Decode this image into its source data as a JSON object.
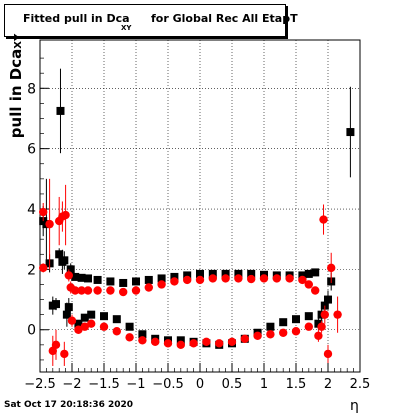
{
  "title": {
    "main": "Fitted pull in Dca",
    "sub": "XY",
    "rest": "for Global Rec All EtapT"
  },
  "ylabel": {
    "main": "pull in Dca",
    "sub": "XY"
  },
  "xlabel": "η",
  "timestamp": "Sat Oct 17 20:18:36 2020",
  "chart_data": {
    "type": "scatter",
    "xlim": [
      -2.5,
      2.5
    ],
    "ylim": [
      -1.4,
      9.6
    ],
    "grid": true,
    "xticks": [
      -2.5,
      -2,
      -1.5,
      -1,
      -0.5,
      0,
      0.5,
      1,
      1.5,
      2,
      2.5
    ],
    "xtick_labels": [
      "−2.5",
      "−2",
      "−1.5",
      "−1",
      "−0.5",
      "0",
      "0.5",
      "1",
      "1.5",
      "2",
      "2.5"
    ],
    "yticks": [
      0,
      2,
      4,
      6,
      8
    ],
    "ytick_labels": [
      "0",
      "2",
      "4",
      "6",
      "8"
    ],
    "series": [
      {
        "color": "#000000",
        "marker": "square",
        "points": [
          [
            -2.45,
            3.6,
            0.5
          ],
          [
            -2.4,
            3.5,
            1.5
          ],
          [
            -2.35,
            2.2,
            0.3
          ],
          [
            -2.3,
            0.8,
            0.3
          ],
          [
            -2.25,
            0.85,
            0.2
          ],
          [
            -2.2,
            2.5,
            0.2
          ],
          [
            -2.18,
            7.25,
            1.4
          ],
          [
            -2.15,
            2.25,
            0.4
          ],
          [
            -2.12,
            2.3,
            0.3
          ],
          [
            -2.08,
            0.5,
            0.4
          ],
          [
            -2.05,
            0.75,
            0.3
          ],
          [
            -2.02,
            2.0,
            0.2
          ],
          [
            -1.95,
            1.75,
            0.1
          ],
          [
            -1.85,
            1.72,
            0.08
          ],
          [
            -1.75,
            1.7,
            0.05
          ],
          [
            -1.6,
            1.65,
            0.05
          ],
          [
            -1.4,
            1.6,
            0.05
          ],
          [
            -1.2,
            1.55,
            0.05
          ],
          [
            -1.0,
            1.6,
            0.05
          ],
          [
            -0.8,
            1.65,
            0.05
          ],
          [
            -0.6,
            1.7,
            0.05
          ],
          [
            -0.4,
            1.75,
            0.05
          ],
          [
            -0.2,
            1.8,
            0.05
          ],
          [
            0.0,
            1.85,
            0.05
          ],
          [
            0.2,
            1.85,
            0.05
          ],
          [
            0.4,
            1.85,
            0.05
          ],
          [
            0.6,
            1.85,
            0.05
          ],
          [
            0.8,
            1.85,
            0.05
          ],
          [
            1.0,
            1.82,
            0.05
          ],
          [
            1.2,
            1.8,
            0.05
          ],
          [
            1.4,
            1.8,
            0.05
          ],
          [
            1.6,
            1.8,
            0.06
          ],
          [
            1.7,
            1.85,
            0.08
          ],
          [
            1.8,
            1.9,
            0.1
          ],
          [
            1.85,
            0.2,
            0.2
          ],
          [
            1.9,
            0.5,
            0.2
          ],
          [
            1.95,
            0.8,
            0.3
          ],
          [
            2.0,
            1.0,
            0.3
          ],
          [
            2.05,
            1.6,
            0.3
          ],
          [
            2.35,
            6.55,
            1.5
          ],
          [
            -1.9,
            0.2,
            0.1
          ],
          [
            -1.8,
            0.4,
            0.05
          ],
          [
            -1.7,
            0.5,
            0.05
          ],
          [
            -1.5,
            0.45,
            0.05
          ],
          [
            -1.3,
            0.35,
            0.05
          ],
          [
            -1.1,
            0.1,
            0.05
          ],
          [
            -0.9,
            -0.15,
            0.05
          ],
          [
            -0.7,
            -0.3,
            0.05
          ],
          [
            -0.5,
            -0.35,
            0.05
          ],
          [
            -0.3,
            -0.35,
            0.05
          ],
          [
            -0.1,
            -0.4,
            0.05
          ],
          [
            0.1,
            -0.45,
            0.05
          ],
          [
            0.3,
            -0.5,
            0.05
          ],
          [
            0.5,
            -0.45,
            0.05
          ],
          [
            0.7,
            -0.3,
            0.05
          ],
          [
            0.9,
            -0.1,
            0.05
          ],
          [
            1.1,
            0.1,
            0.05
          ],
          [
            1.3,
            0.25,
            0.05
          ],
          [
            1.5,
            0.35,
            0.05
          ],
          [
            1.7,
            0.45,
            0.06
          ]
        ]
      },
      {
        "color": "#ff0000",
        "marker": "circle",
        "points": [
          [
            -2.45,
            2.05,
            0.15
          ],
          [
            -2.45,
            3.9,
            0.3
          ],
          [
            -2.35,
            3.5,
            1.5
          ],
          [
            -2.3,
            -0.7,
            0.5
          ],
          [
            -2.25,
            -0.5,
            0.5
          ],
          [
            -2.2,
            3.6,
            0.8
          ],
          [
            -2.15,
            3.75,
            0.5
          ],
          [
            -2.12,
            -0.8,
            0.4
          ],
          [
            -2.1,
            3.8,
            1.0
          ],
          [
            -2.05,
            1.8,
            0.2
          ],
          [
            -2.02,
            1.4,
            0.2
          ],
          [
            -2.0,
            0.3,
            0.2
          ],
          [
            -1.95,
            1.3,
            0.1
          ],
          [
            -1.85,
            1.3,
            0.08
          ],
          [
            -1.75,
            1.3,
            0.05
          ],
          [
            -1.6,
            1.3,
            0.05
          ],
          [
            -1.4,
            1.3,
            0.05
          ],
          [
            -1.2,
            1.25,
            0.05
          ],
          [
            -1.0,
            1.3,
            0.05
          ],
          [
            -0.8,
            1.4,
            0.05
          ],
          [
            -0.6,
            1.5,
            0.05
          ],
          [
            -0.4,
            1.6,
            0.05
          ],
          [
            -0.2,
            1.65,
            0.05
          ],
          [
            0.0,
            1.65,
            0.05
          ],
          [
            0.2,
            1.7,
            0.05
          ],
          [
            0.4,
            1.7,
            0.05
          ],
          [
            0.6,
            1.7,
            0.05
          ],
          [
            0.8,
            1.68,
            0.05
          ],
          [
            1.0,
            1.7,
            0.05
          ],
          [
            1.2,
            1.7,
            0.05
          ],
          [
            1.4,
            1.7,
            0.05
          ],
          [
            1.6,
            1.65,
            0.06
          ],
          [
            1.7,
            1.5,
            0.08
          ],
          [
            1.8,
            1.3,
            0.1
          ],
          [
            1.85,
            -0.2,
            0.2
          ],
          [
            1.9,
            0.1,
            0.2
          ],
          [
            1.93,
            3.65,
            0.5
          ],
          [
            1.95,
            0.5,
            0.3
          ],
          [
            2.0,
            -0.8,
            0.3
          ],
          [
            2.05,
            2.05,
            0.5
          ],
          [
            2.15,
            0.5,
            0.6
          ],
          [
            -1.9,
            0.0,
            0.1
          ],
          [
            -1.8,
            0.1,
            0.05
          ],
          [
            -1.7,
            0.2,
            0.05
          ],
          [
            -1.5,
            0.1,
            0.05
          ],
          [
            -1.3,
            -0.05,
            0.05
          ],
          [
            -1.1,
            -0.25,
            0.05
          ],
          [
            -0.9,
            -0.35,
            0.05
          ],
          [
            -0.7,
            -0.4,
            0.05
          ],
          [
            -0.5,
            -0.45,
            0.05
          ],
          [
            -0.3,
            -0.5,
            0.05
          ],
          [
            -0.1,
            -0.45,
            0.05
          ],
          [
            0.1,
            -0.4,
            0.05
          ],
          [
            0.3,
            -0.45,
            0.05
          ],
          [
            0.5,
            -0.4,
            0.05
          ],
          [
            0.7,
            -0.3,
            0.05
          ],
          [
            0.9,
            -0.2,
            0.05
          ],
          [
            1.1,
            -0.15,
            0.05
          ],
          [
            1.3,
            -0.1,
            0.05
          ],
          [
            1.5,
            -0.05,
            0.05
          ],
          [
            1.7,
            0.1,
            0.06
          ]
        ]
      }
    ]
  }
}
